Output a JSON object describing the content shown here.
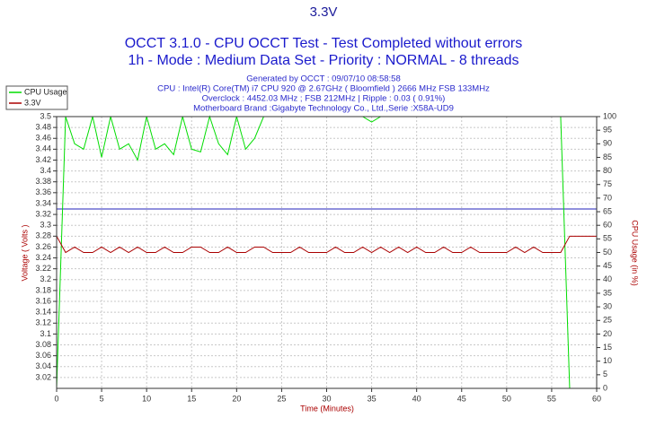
{
  "chart_data": {
    "type": "line",
    "title": "3.3V",
    "subtitles": [
      "OCCT 3.1.0 - CPU OCCT Test - Test Completed without errors",
      "1h - Mode : Medium Data Set - Priority : NORMAL - 8 threads"
    ],
    "annotations": [
      "Generated by OCCT : 09/07/10 08:58:58",
      "CPU : Intel(R) Core(TM) i7 CPU 920 @ 2.67GHz ( Bloomfield ) 2666 MHz FSB 133MHz",
      "Overclock : 4452.03 MHz ; FSB 212MHz | Ripple : 0.03 ( 0.91%)",
      "Motherboard Brand :Gigabyte Technology Co., Ltd.,Serie :X58A-UD9"
    ],
    "x_label": "Time (Minutes)",
    "y_label": "Voltage ( Volts )",
    "y2_label": "CPU Usage (in %)",
    "x": [
      0,
      1,
      2,
      3,
      4,
      5,
      6,
      7,
      8,
      9,
      10,
      11,
      12,
      13,
      14,
      15,
      16,
      17,
      18,
      19,
      20,
      21,
      22,
      23,
      24,
      25,
      26,
      27,
      28,
      29,
      30,
      31,
      32,
      33,
      34,
      35,
      36,
      37,
      38,
      39,
      40,
      41,
      42,
      43,
      44,
      45,
      46,
      47,
      48,
      49,
      50,
      51,
      52,
      53,
      54,
      55,
      56,
      57,
      58,
      59,
      60
    ],
    "series": [
      {
        "name": "CPU Usage",
        "color": "#00dd00",
        "axis": "y2",
        "values": [
          0,
          100,
          90,
          88,
          100,
          85,
          100,
          88,
          90,
          84,
          100,
          88,
          90,
          86,
          100,
          88,
          87,
          100,
          90,
          86,
          100,
          88,
          92,
          100,
          100,
          100,
          100,
          100,
          100,
          100,
          100,
          100,
          100,
          100,
          100,
          98,
          100,
          100,
          100,
          100,
          100,
          100,
          100,
          100,
          100,
          100,
          100,
          100,
          100,
          100,
          100,
          100,
          100,
          100,
          100,
          100,
          100,
          0,
          0,
          0,
          0
        ]
      },
      {
        "name": "3.3V",
        "color": "#aa0000",
        "values": [
          3.28,
          3.25,
          3.26,
          3.25,
          3.25,
          3.26,
          3.25,
          3.26,
          3.25,
          3.26,
          3.25,
          3.25,
          3.26,
          3.25,
          3.25,
          3.26,
          3.26,
          3.25,
          3.25,
          3.26,
          3.25,
          3.25,
          3.26,
          3.26,
          3.25,
          3.25,
          3.25,
          3.26,
          3.25,
          3.25,
          3.25,
          3.26,
          3.25,
          3.25,
          3.26,
          3.25,
          3.26,
          3.25,
          3.26,
          3.25,
          3.26,
          3.25,
          3.25,
          3.26,
          3.25,
          3.25,
          3.26,
          3.25,
          3.25,
          3.25,
          3.25,
          3.26,
          3.25,
          3.26,
          3.25,
          3.25,
          3.25,
          3.28,
          3.28,
          3.28,
          3.28
        ]
      }
    ],
    "reference_line": 3.33,
    "reference_color": "#2222bb",
    "xlim": [
      0,
      60
    ],
    "xticks": [
      0,
      5,
      10,
      15,
      20,
      25,
      30,
      35,
      40,
      45,
      50,
      55,
      60
    ],
    "ylim": [
      3.0,
      3.5
    ],
    "yticks": [
      3.02,
      3.04,
      3.06,
      3.08,
      3.1,
      3.12,
      3.14,
      3.16,
      3.18,
      3.2,
      3.22,
      3.24,
      3.26,
      3.28,
      3.3,
      3.32,
      3.34,
      3.36,
      3.38,
      3.4,
      3.42,
      3.44,
      3.46,
      3.48,
      3.5
    ],
    "y2lim": [
      0,
      100
    ],
    "y2ticks": [
      0,
      5,
      10,
      15,
      20,
      25,
      30,
      35,
      40,
      45,
      50,
      55,
      60,
      65,
      70,
      75,
      80,
      85,
      90,
      95,
      100
    ],
    "grid": true
  }
}
